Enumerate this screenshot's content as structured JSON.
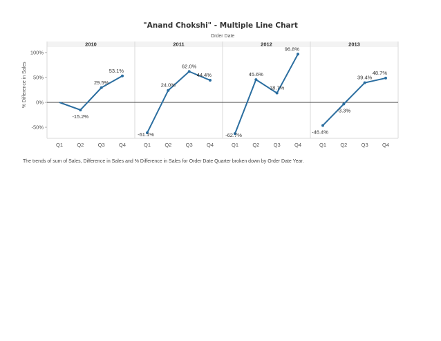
{
  "title": "\"Anand Chokshi\" - Multiple Line Chart",
  "caption": "The trends of sum of Sales, Difference in Sales and % Difference in Sales for Order Date Quarter broken down by Order Date Year.",
  "chart_data": {
    "type": "line",
    "column_header": "Order Date",
    "ylabel": "% Difference in Sales",
    "ylim": [
      -70,
      110
    ],
    "yticks": [
      100,
      50,
      0,
      -50
    ],
    "ytick_labels": [
      "100%",
      "50%",
      "0%",
      "-50%"
    ],
    "categories": [
      "Q1",
      "Q2",
      "Q3",
      "Q4"
    ],
    "line_color": "#2b6ea0",
    "panels": [
      {
        "year": "2010",
        "values": [
          null,
          -15.2,
          29.5,
          53.1
        ],
        "labels": [
          "",
          "-15.2%",
          "29.5%",
          "53.1%"
        ]
      },
      {
        "year": "2011",
        "values": [
          -61.1,
          24.0,
          62.0,
          44.4
        ],
        "labels": [
          "-61.1%",
          "24.0%",
          "62.0%",
          "44.4%"
        ]
      },
      {
        "year": "2012",
        "values": [
          -62.7,
          45.6,
          18.7,
          96.8
        ],
        "labels": [
          "-62.7%",
          "45.6%",
          "18.7%",
          "96.8%"
        ]
      },
      {
        "year": "2013",
        "values": [
          -46.4,
          -3.3,
          39.4,
          48.7
        ],
        "labels": [
          "-46.4%",
          "-3.3%",
          "39.4%",
          "48.7%"
        ]
      }
    ],
    "first_line_start": 0
  }
}
